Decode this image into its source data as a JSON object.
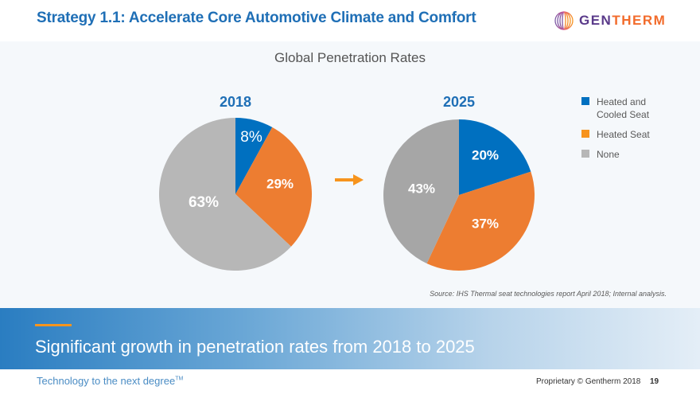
{
  "header": {
    "title": "Strategy 1.1: Accelerate Core Automotive Climate and Comfort",
    "logo": {
      "icon": "gentherm-globe-icon",
      "text_part1": "GEN",
      "text_part2": "THERM"
    }
  },
  "colors": {
    "heated_and_cooled": "#0070c0",
    "heated": "#ed7d31",
    "none_2018": "#b7b7b7",
    "none_2025": "#a6a6a6",
    "title_blue": "#1f6fb6",
    "arrow": "#f7941d"
  },
  "chart_data": {
    "type": "pie",
    "title": "Global Penetration Rates",
    "legend": {
      "placement": "right",
      "entries": [
        "Heated and Cooled Seat",
        "Heated Seat",
        "None"
      ]
    },
    "charts": [
      {
        "title": "2018",
        "categories": [
          "Heated and Cooled Seat",
          "Heated Seat",
          "None"
        ],
        "values": [
          8,
          29,
          63
        ],
        "labels": [
          "8%",
          "29%",
          "63%"
        ]
      },
      {
        "title": "2025",
        "categories": [
          "Heated and Cooled Seat",
          "Heated Seat",
          "None"
        ],
        "values": [
          20,
          37,
          43
        ],
        "labels": [
          "20%",
          "37%",
          "43%"
        ]
      }
    ],
    "annotation": "arrow from 2018 to 2025",
    "source": "Source:  IHS Thermal seat technologies report April 2018; Internal analysis."
  },
  "legend": {
    "items": [
      {
        "label": "Heated and Cooled Seat",
        "color": "#0070c0"
      },
      {
        "label": "Heated Seat",
        "color": "#f7941d"
      },
      {
        "label": "None",
        "color": "#b7b7b7"
      }
    ]
  },
  "banner": {
    "text": "Significant growth in penetration rates from 2018 to 2025"
  },
  "footer": {
    "tagline": "Technology to the next degree",
    "tagline_mark": "TM",
    "copyright": "Proprietary © Gentherm 2018",
    "page_number": "19"
  }
}
